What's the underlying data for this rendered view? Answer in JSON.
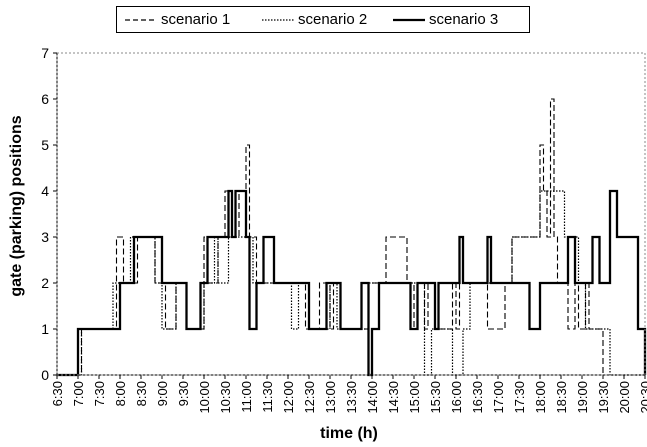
{
  "chart_data": {
    "type": "line",
    "step": true,
    "xlabel": "time (h)",
    "ylabel": "gate (parking) positions",
    "xlim": [
      "6:30",
      "20:30"
    ],
    "ylim": [
      0,
      7
    ],
    "yticks": [
      "0",
      "1",
      "2",
      "3",
      "4",
      "5",
      "6",
      "7"
    ],
    "xticks": [
      "6:30",
      "7:00",
      "7:30",
      "8:00",
      "8:30",
      "9:00",
      "9:30",
      "10:00",
      "10:30",
      "11:00",
      "11:30",
      "12:00",
      "12:30",
      "13:00",
      "13:30",
      "14:00",
      "14:30",
      "15:00",
      "15:30",
      "16:00",
      "16:30",
      "17:00",
      "17:30",
      "18:00",
      "18:30",
      "19:00",
      "19:30",
      "20:00",
      "20:30"
    ],
    "grid": false,
    "legend_position": "top",
    "series": [
      {
        "name": "scenario 1",
        "style": "dashed",
        "x": [
          "6:30",
          "7:05",
          "7:55",
          "8:05",
          "8:10",
          "8:25",
          "8:50",
          "9:05",
          "9:20",
          "9:35",
          "10:00",
          "10:05",
          "10:20",
          "10:30",
          "10:35",
          "10:50",
          "11:00",
          "11:05",
          "11:15",
          "11:30",
          "11:50",
          "12:00",
          "12:15",
          "12:25",
          "12:45",
          "13:00",
          "13:05",
          "13:15",
          "13:50",
          "13:55",
          "14:20",
          "14:50",
          "15:00",
          "15:05",
          "15:15",
          "15:20",
          "15:35",
          "15:55",
          "16:00",
          "16:05",
          "16:25",
          "16:45",
          "17:10",
          "17:20",
          "17:30",
          "17:45",
          "18:00",
          "18:05",
          "18:10",
          "18:15",
          "18:20",
          "18:25",
          "18:30",
          "18:40",
          "18:50",
          "18:55",
          "19:00",
          "19:05",
          "19:10",
          "19:20",
          "19:30",
          "20:30"
        ],
        "y": [
          0,
          1,
          3,
          2,
          2,
          3,
          2,
          1,
          2,
          1,
          3,
          2,
          3,
          4,
          3,
          4,
          5,
          3,
          2,
          2,
          2,
          2,
          2,
          1,
          2,
          1,
          2,
          1,
          1,
          2,
          3,
          2,
          1,
          2,
          1,
          2,
          1,
          2,
          1,
          2,
          2,
          1,
          2,
          3,
          3,
          3,
          5,
          4,
          3,
          6,
          3,
          2,
          2,
          1,
          2,
          1,
          1,
          2,
          1,
          1,
          0,
          0
        ]
      },
      {
        "name": "scenario 2",
        "style": "dotted",
        "x": [
          "6:30",
          "7:05",
          "7:50",
          "8:05",
          "8:15",
          "8:40",
          "8:50",
          "9:00",
          "9:20",
          "9:35",
          "10:00",
          "10:15",
          "10:20",
          "10:35",
          "10:45",
          "11:00",
          "11:10",
          "11:30",
          "11:55",
          "12:05",
          "12:15",
          "12:30",
          "12:50",
          "13:00",
          "13:10",
          "13:20",
          "13:50",
          "13:55",
          "14:00",
          "14:45",
          "15:00",
          "15:15",
          "15:25",
          "15:40",
          "15:55",
          "16:00",
          "16:10",
          "16:20",
          "16:50",
          "17:10",
          "17:20",
          "17:35",
          "17:50",
          "18:00",
          "18:10",
          "18:25",
          "18:35",
          "18:45",
          "18:55",
          "19:05",
          "19:25",
          "19:40",
          "20:30"
        ],
        "y": [
          0,
          1,
          2,
          2,
          3,
          3,
          2,
          1,
          2,
          1,
          2,
          3,
          2,
          3,
          3,
          3,
          2,
          2,
          2,
          1,
          2,
          1,
          1,
          2,
          1,
          1,
          1,
          2,
          2,
          2,
          2,
          0,
          1,
          1,
          0,
          0,
          1,
          2,
          2,
          2,
          3,
          3,
          3,
          4,
          4,
          4,
          3,
          3,
          2,
          1,
          1,
          0,
          0
        ]
      },
      {
        "name": "scenario 3",
        "style": "solid",
        "x": [
          "6:30",
          "7:00",
          "7:30",
          "8:00",
          "8:20",
          "8:50",
          "9:00",
          "9:25",
          "9:35",
          "9:55",
          "10:05",
          "10:25",
          "10:35",
          "10:40",
          "10:45",
          "11:00",
          "11:05",
          "11:15",
          "11:25",
          "11:40",
          "12:15",
          "12:30",
          "12:45",
          "12:55",
          "13:15",
          "13:45",
          "13:55",
          "14:00",
          "14:10",
          "14:50",
          "14:55",
          "15:05",
          "15:20",
          "15:30",
          "15:35",
          "16:00",
          "16:05",
          "16:10",
          "16:35",
          "16:45",
          "16:50",
          "17:45",
          "18:00",
          "18:40",
          "18:50",
          "19:10",
          "19:15",
          "19:25",
          "19:40",
          "19:50",
          "20:05",
          "20:20",
          "20:30"
        ],
        "y": [
          0,
          1,
          1,
          2,
          3,
          3,
          2,
          2,
          1,
          2,
          3,
          3,
          4,
          3,
          4,
          3,
          1,
          2,
          3,
          2,
          2,
          1,
          1,
          2,
          1,
          2,
          0,
          1,
          2,
          2,
          1,
          2,
          2,
          1,
          2,
          2,
          3,
          2,
          2,
          3,
          2,
          1,
          2,
          3,
          2,
          2,
          3,
          2,
          4,
          3,
          3,
          1,
          0
        ]
      }
    ]
  }
}
